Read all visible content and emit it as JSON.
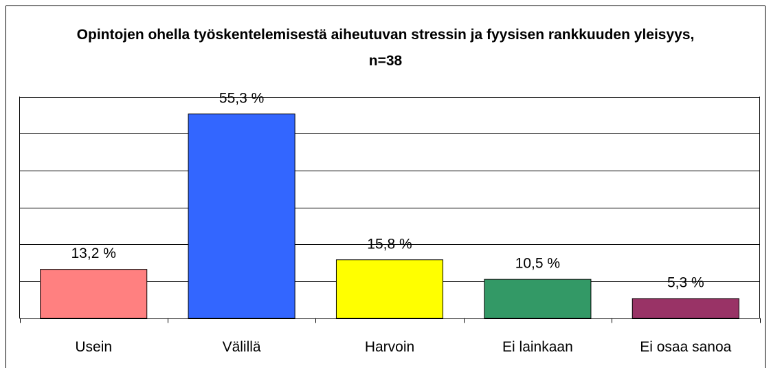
{
  "chart_data": {
    "type": "bar",
    "title": "Opintojen ohella työskentelemisestä aiheutuvan stressin ja fyysisen rankkuuden yleisyys, n=38",
    "categories": [
      "Usein",
      "Välillä",
      "Harvoin",
      "Ei lainkaan",
      "Ei osaa sanoa"
    ],
    "values": [
      13.2,
      55.3,
      15.8,
      10.5,
      5.3
    ],
    "value_labels": [
      "13,2 %",
      "55,3 %",
      "15,8 %",
      "10,5 %",
      "5,3 %"
    ],
    "colors": [
      "#ff8080",
      "#3366ff",
      "#ffff00",
      "#339966",
      "#993366"
    ],
    "ylim": [
      0,
      60
    ],
    "yticks": [
      0,
      10,
      20,
      30,
      40,
      50,
      60
    ],
    "grid": true
  }
}
